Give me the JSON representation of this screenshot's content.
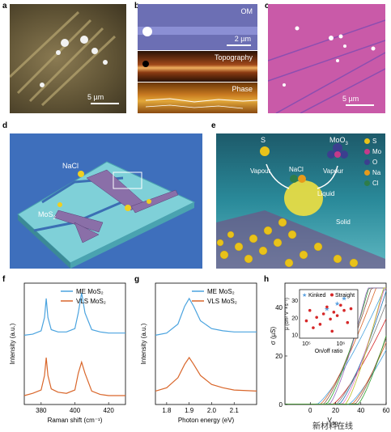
{
  "panels": {
    "a": {
      "label": "a",
      "scale": "5 µm"
    },
    "b": {
      "label": "b",
      "om": "OM",
      "scale": "2 µm",
      "topography": "Topography",
      "phase": "Phase"
    },
    "c": {
      "label": "c",
      "scale": "5 µm"
    },
    "d": {
      "label": "d",
      "nacl": "NaCl",
      "mos2": "MoS",
      "mos2_sub": "2"
    },
    "e": {
      "label": "e",
      "s": "S",
      "moo3": "MoO",
      "moo3_sub": "3",
      "vapour_left": "Vapour",
      "vapour_right": "Vapour",
      "nacl": "NaCl",
      "liquid": "Liquid",
      "solid": "Solid",
      "legend": [
        {
          "label": "S",
          "color": "#e8c21a"
        },
        {
          "label": "Mo",
          "color": "#c43a8a"
        },
        {
          "label": "O",
          "color": "#3b3f8f"
        },
        {
          "label": "Na",
          "color": "#e89a1a"
        },
        {
          "label": "Cl",
          "color": "#2e7d4a"
        }
      ]
    },
    "f": {
      "label": "f",
      "ylabel": "Intensity (a.u.)",
      "xlabel": "Raman shift (cm⁻¹)",
      "legend": [
        "ME MoS₂",
        "VLS MoS₂"
      ],
      "xticks": [
        "380",
        "400",
        "420"
      ]
    },
    "g": {
      "label": "g",
      "ylabel": "Intensity (a.u.)",
      "xlabel": "Photon energy (eV)",
      "legend": [
        "ME MoS₂",
        "VLS MoS₂"
      ],
      "xticks": [
        "1.8",
        "1.9",
        "2.0",
        "2.1"
      ]
    },
    "h": {
      "label": "h",
      "ylabel": "σ (µS)",
      "xlabel": "V",
      "xlabel_sub": "bg",
      "yticks": [
        "0",
        "20",
        "40"
      ],
      "xticks": [
        "0",
        "20",
        "40",
        "60"
      ],
      "inset": {
        "legend": [
          "Kinked",
          "Straight"
        ],
        "xlabel": "On/off ratio",
        "ylabel": "μ (cm² V⁻¹ s⁻¹)",
        "yticks": [
          "10",
          "20",
          "30"
        ],
        "xticks": [
          "10⁵",
          "10⁶"
        ]
      }
    }
  },
  "colors": {
    "blue": "#4aa3df",
    "orange": "#d9662a",
    "red": "#d62728",
    "kinked": "#5aa0e0"
  },
  "chart_data": [
    {
      "type": "line",
      "panel": "f",
      "xlabel": "Raman shift (cm⁻¹)",
      "ylabel": "Intensity (a.u.)",
      "xlim": [
        370,
        430
      ],
      "series": [
        {
          "name": "ME MoS₂",
          "x": [
            370,
            375,
            380,
            382,
            383,
            384,
            386,
            390,
            395,
            400,
            402,
            404,
            406,
            410,
            415,
            420,
            430
          ],
          "y": [
            0.62,
            0.63,
            0.66,
            0.78,
            0.95,
            0.78,
            0.67,
            0.65,
            0.65,
            0.68,
            0.82,
            1.0,
            0.82,
            0.67,
            0.65,
            0.64,
            0.64
          ]
        },
        {
          "name": "VLS MoS₂",
          "x": [
            370,
            375,
            380,
            382,
            383,
            384,
            386,
            390,
            395,
            400,
            402,
            404,
            406,
            410,
            415,
            420,
            430
          ],
          "y": [
            0.08,
            0.1,
            0.13,
            0.26,
            0.42,
            0.26,
            0.14,
            0.11,
            0.1,
            0.13,
            0.28,
            0.38,
            0.28,
            0.12,
            0.09,
            0.08,
            0.08
          ]
        }
      ]
    },
    {
      "type": "line",
      "panel": "g",
      "xlabel": "Photon energy (eV)",
      "ylabel": "Intensity (a.u.)",
      "xlim": [
        1.75,
        2.2
      ],
      "series": [
        {
          "name": "ME MoS₂",
          "x": [
            1.75,
            1.8,
            1.85,
            1.88,
            1.9,
            1.92,
            1.95,
            2.0,
            2.05,
            2.1,
            2.2
          ],
          "y": [
            0.62,
            0.64,
            0.72,
            0.88,
            0.95,
            0.88,
            0.75,
            0.68,
            0.66,
            0.65,
            0.65
          ]
        },
        {
          "name": "VLS MoS₂",
          "x": [
            1.75,
            1.8,
            1.85,
            1.88,
            1.9,
            1.92,
            1.95,
            2.0,
            2.05,
            2.1,
            2.2
          ],
          "y": [
            0.12,
            0.15,
            0.24,
            0.36,
            0.42,
            0.36,
            0.26,
            0.18,
            0.15,
            0.13,
            0.12
          ]
        }
      ]
    },
    {
      "type": "scatter",
      "panel": "h-inset",
      "xlabel": "On/off ratio",
      "ylabel": "μ (cm² V⁻¹ s⁻¹)",
      "series": [
        {
          "name": "Kinked",
          "x": [
            5.6,
            5.9,
            6.1
          ],
          "y": [
            25,
            28,
            31
          ]
        },
        {
          "name": "Straight",
          "x": [
            5.0,
            5.1,
            5.3,
            5.4,
            5.5,
            5.6,
            5.7,
            5.8,
            5.9,
            6.0,
            6.1,
            6.2,
            6.3,
            5.2,
            5.75
          ],
          "y": [
            18,
            24,
            20,
            16,
            22,
            26,
            19,
            23,
            21,
            27,
            24,
            17,
            25,
            14,
            12
          ]
        }
      ]
    }
  ]
}
